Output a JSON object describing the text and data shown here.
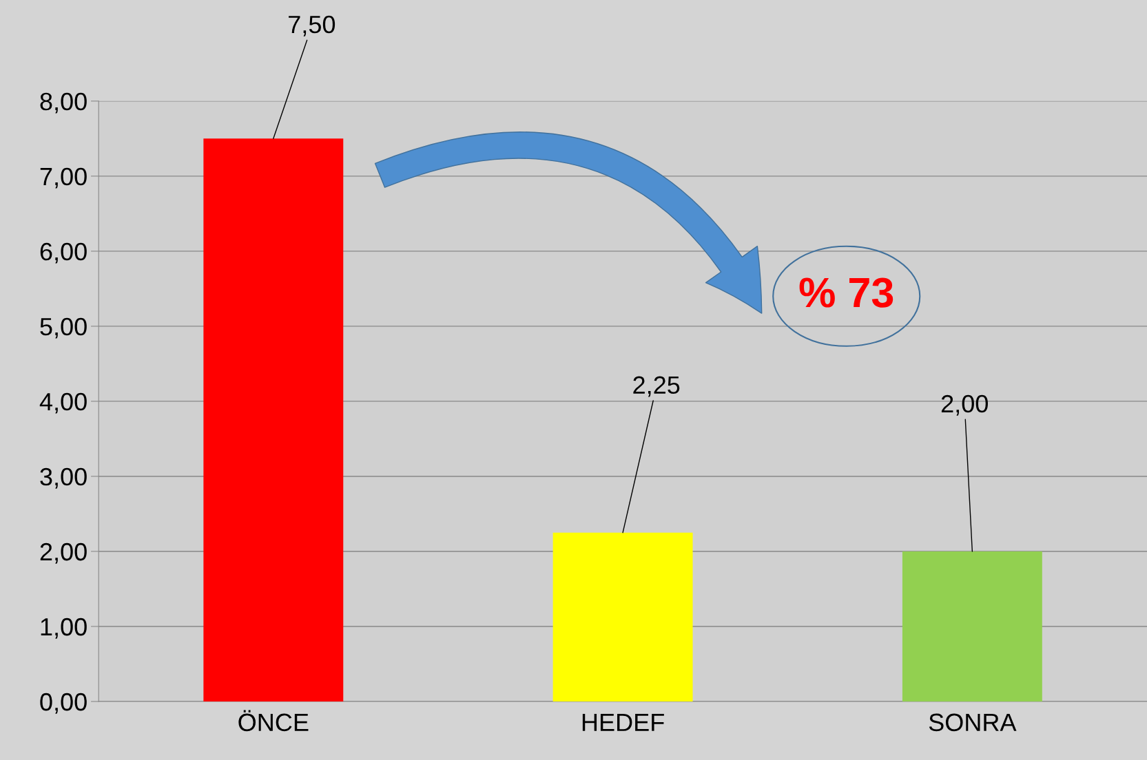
{
  "chart_data": {
    "type": "bar",
    "categories": [
      "ÖNCE",
      "HEDEF",
      "SONRA"
    ],
    "values": [
      7.5,
      2.25,
      2.0
    ],
    "colors": [
      "#ff0000",
      "#ffff00",
      "#92d050"
    ],
    "value_labels": [
      "7,50",
      "2,25",
      "2,00"
    ],
    "ylim": [
      0,
      8
    ],
    "yticks": [
      {
        "value": 0,
        "label": "0,00"
      },
      {
        "value": 1,
        "label": "1,00"
      },
      {
        "value": 2,
        "label": "2,00"
      },
      {
        "value": 3,
        "label": "3,00"
      },
      {
        "value": 4,
        "label": "4,00"
      },
      {
        "value": 5,
        "label": "5,00"
      },
      {
        "value": 6,
        "label": "6,00"
      },
      {
        "value": 7,
        "label": "7,00"
      },
      {
        "value": 8,
        "label": "8,00"
      }
    ],
    "grid": "y",
    "annotations": [
      "% 73"
    ]
  }
}
